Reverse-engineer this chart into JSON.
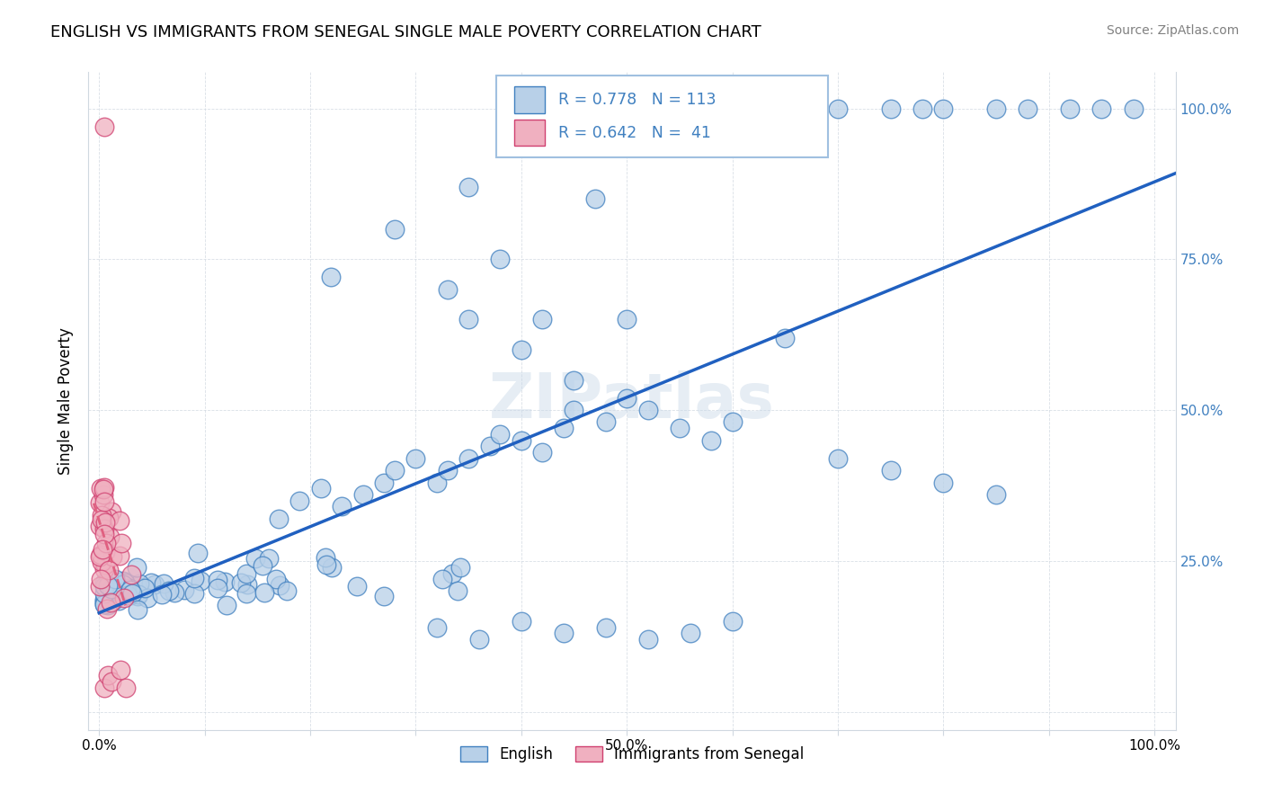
{
  "title": "ENGLISH VS IMMIGRANTS FROM SENEGAL SINGLE MALE POVERTY CORRELATION CHART",
  "source": "Source: ZipAtlas.com",
  "ylabel": "Single Male Poverty",
  "x_tick_labels": [
    "0.0%",
    "",
    "",
    "",
    "",
    "50.0%",
    "",
    "",
    "",
    "",
    "100.0%"
  ],
  "y_tick_labels_right": [
    "",
    "25.0%",
    "50.0%",
    "75.0%",
    "100.0%"
  ],
  "blue_R": 0.778,
  "blue_N": 113,
  "pink_R": 0.642,
  "pink_N": 41,
  "blue_color": "#b8d0e8",
  "blue_edge_color": "#4080c0",
  "pink_color": "#f0b0c0",
  "pink_edge_color": "#d04070",
  "legend_series": [
    "English",
    "Immigrants from Senegal"
  ],
  "watermark_text": "ZIPatlas",
  "blue_line_color": "#2060c0",
  "pink_line_color": "#e06080"
}
